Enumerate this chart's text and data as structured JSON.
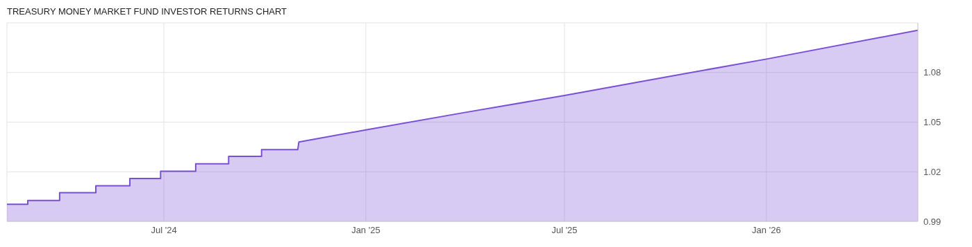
{
  "chart_data": {
    "type": "area",
    "title": "TREASURY MONEY MARKET FUND INVESTOR RETURNS CHART",
    "x": [
      "2024-02-09",
      "2024-02-28",
      "2024-02-28",
      "2024-03-28",
      "2024-03-28",
      "2024-04-30",
      "2024-04-30",
      "2024-05-31",
      "2024-05-31",
      "2024-06-28",
      "2024-06-28",
      "2024-07-30",
      "2024-07-30",
      "2024-08-29",
      "2024-08-29",
      "2024-09-28",
      "2024-09-28",
      "2024-10-31",
      "2024-11-01",
      "2025-01-01",
      "2025-04-01",
      "2025-07-01",
      "2025-10-01",
      "2026-01-01",
      "2026-05-19"
    ],
    "series": [
      {
        "color": "#7a4fd6",
        "values": [
          1.0004,
          1.0004,
          1.0027,
          1.0027,
          1.0073,
          1.0073,
          1.0115,
          1.0115,
          1.0159,
          1.0159,
          1.0203,
          1.0203,
          1.0248,
          1.0248,
          1.0293,
          1.0293,
          1.0334,
          1.0334,
          1.038,
          1.0453,
          1.0558,
          1.0661,
          1.0772,
          1.0881,
          1.1055
        ]
      }
    ],
    "xlim": [
      "2024-02-09",
      "2026-05-19"
    ],
    "xticks": [
      {
        "value": "2024-07-01",
        "label": "Jul '24"
      },
      {
        "value": "2025-01-01",
        "label": "Jan '25"
      },
      {
        "value": "2025-07-01",
        "label": "Jul '25"
      },
      {
        "value": "2026-01-01",
        "label": "Jan '26"
      }
    ],
    "ylim": [
      0.99,
      1.11
    ],
    "yticks": [
      0.99,
      1.02,
      1.05,
      1.08,
      {
        "value": 1.11,
        "label": null
      }
    ],
    "grid": true
  }
}
